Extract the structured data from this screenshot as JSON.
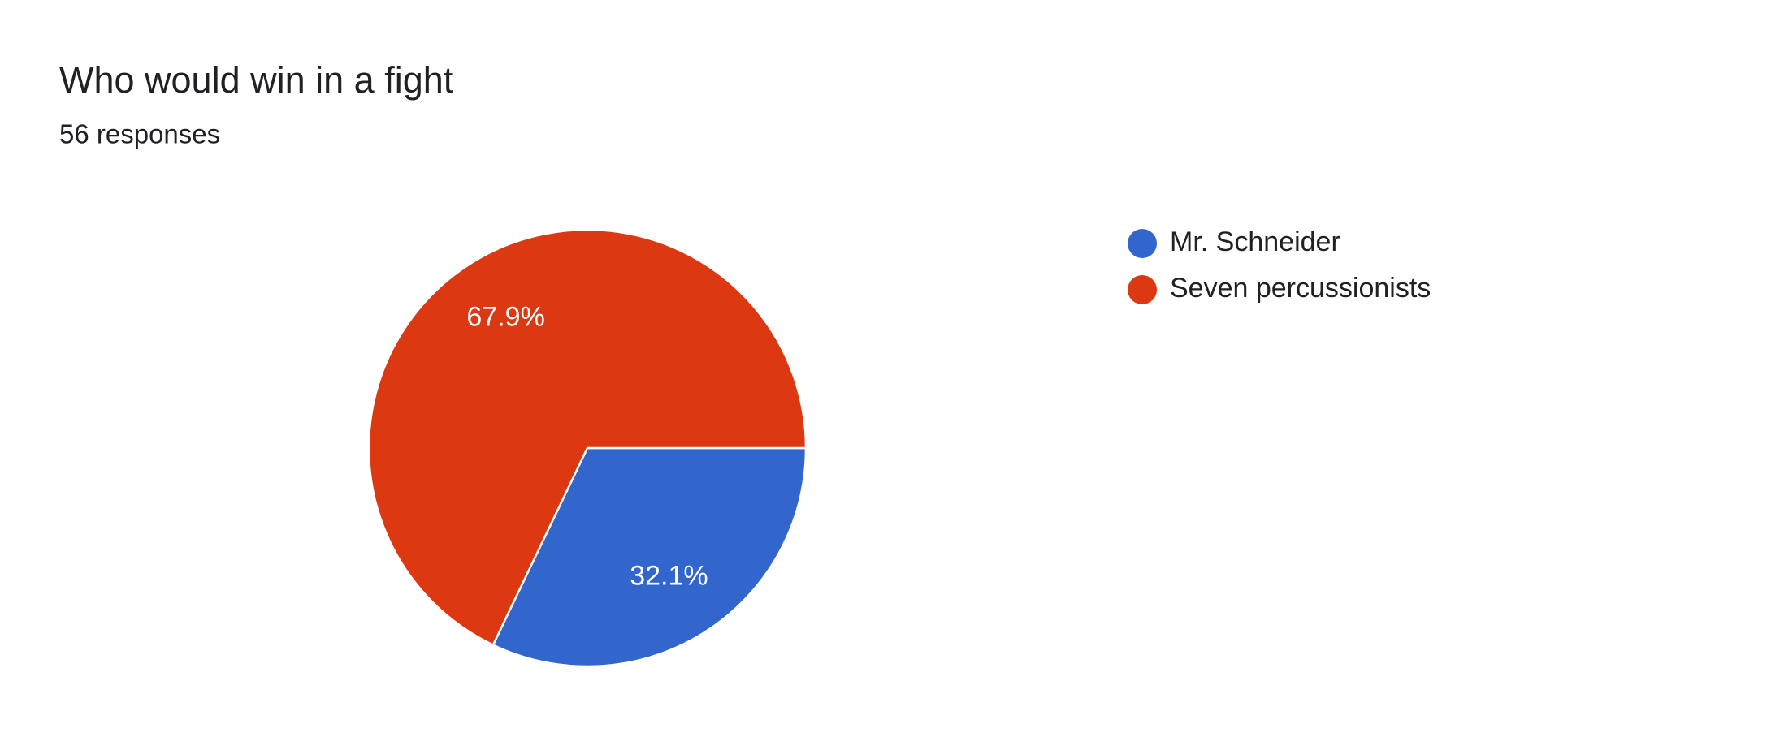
{
  "chart_data": {
    "type": "pie",
    "title": "Who would win in a fight",
    "subtitle": "56 responses",
    "categories": [
      "Mr. Schneider",
      "Seven percussionists"
    ],
    "values": [
      32.1,
      67.9
    ],
    "value_labels": [
      "32.1%",
      "67.9%"
    ],
    "colors": [
      "#3366cc",
      "#dc3912"
    ],
    "legend": "right"
  }
}
